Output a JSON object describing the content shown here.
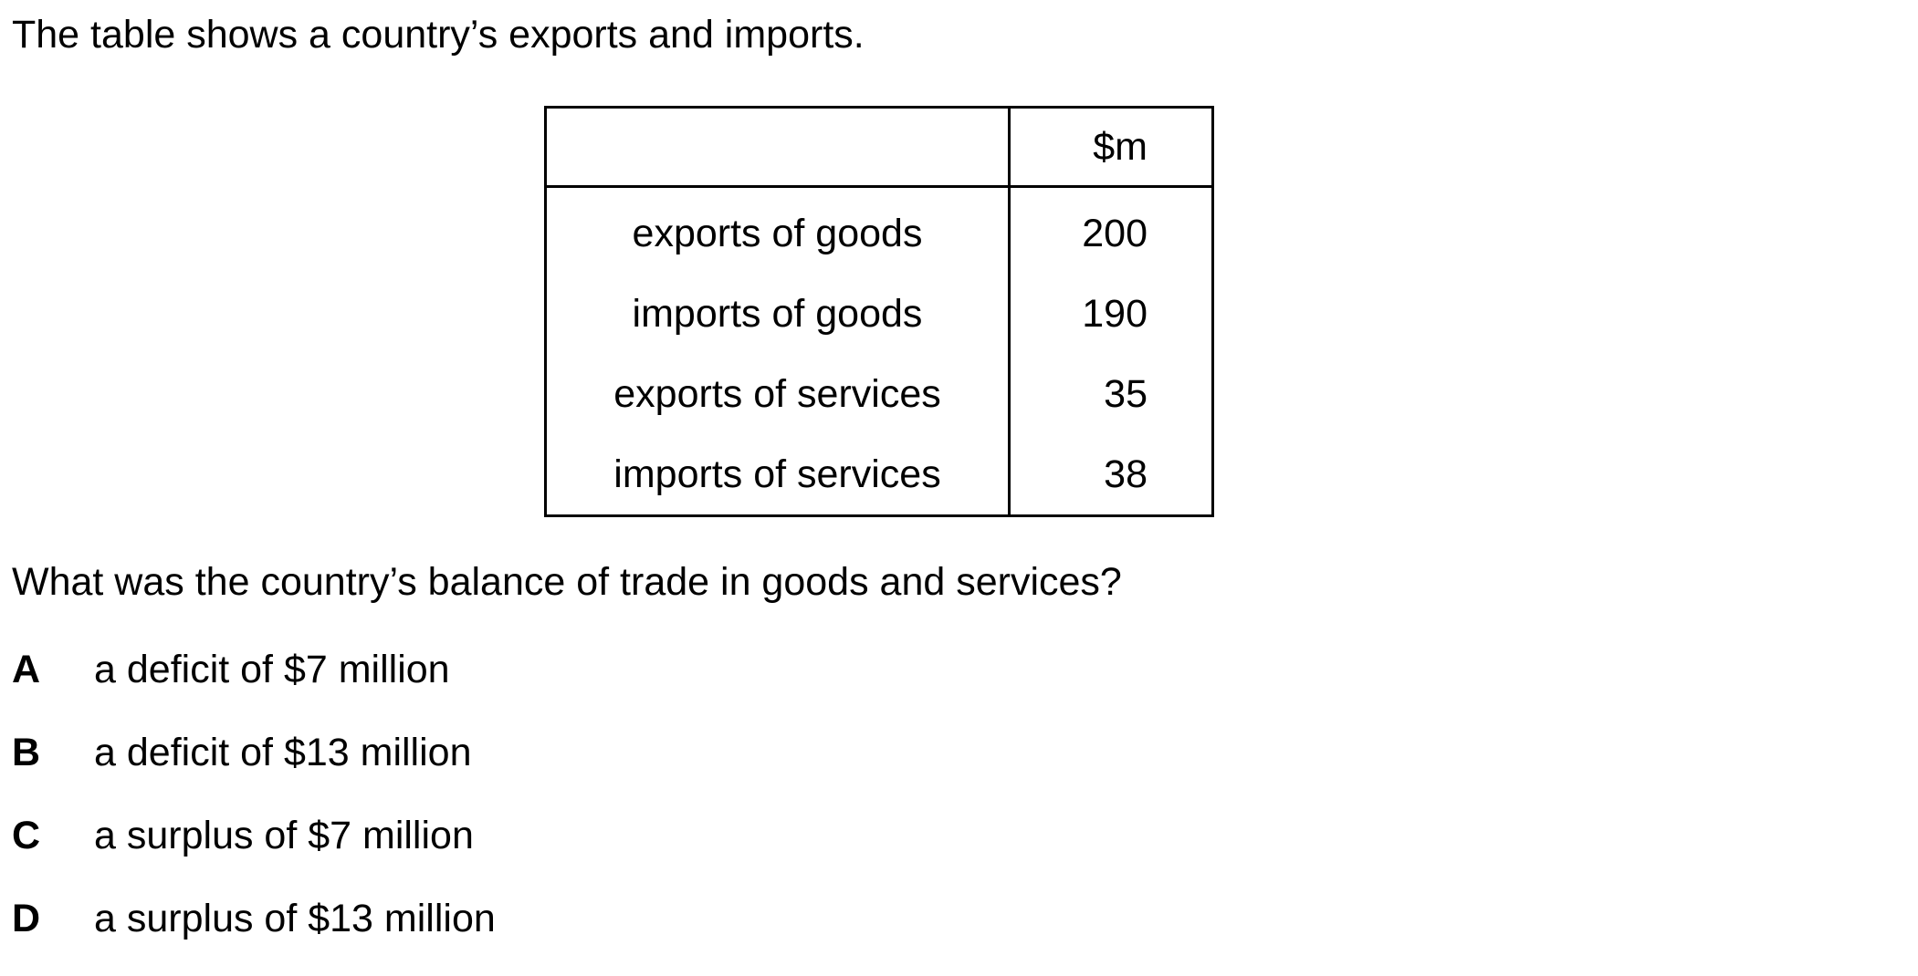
{
  "intro": "The table shows a country’s exports and imports.",
  "table": {
    "header": [
      "",
      "$m"
    ],
    "rows": [
      {
        "label": "exports of goods",
        "value": "200"
      },
      {
        "label": "imports of goods",
        "value": "190"
      },
      {
        "label": "exports of services",
        "value": "35"
      },
      {
        "label": "imports of services",
        "value": "38"
      }
    ]
  },
  "question": "What was the country’s balance of trade in goods and services?",
  "options": [
    {
      "letter": "A",
      "text": "a deficit of $7 million"
    },
    {
      "letter": "B",
      "text": "a deficit of $13 million"
    },
    {
      "letter": "C",
      "text": "a surplus of $7 million"
    },
    {
      "letter": "D",
      "text": "a surplus of $13 million"
    }
  ]
}
